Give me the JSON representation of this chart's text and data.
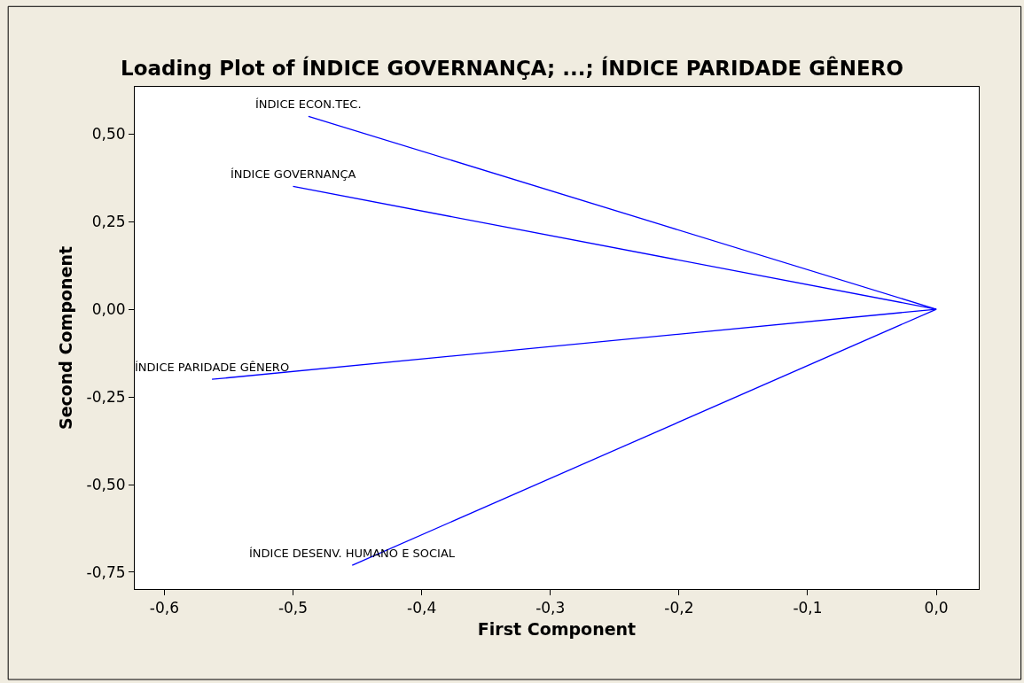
{
  "chart_data": {
    "type": "line",
    "title": "Loading Plot of ÍNDICE GOVERNANÇA; ...; ÍNDICE PARIDADE GÊNERO",
    "xlabel": "First Component",
    "ylabel": "Second Component",
    "series": [
      {
        "name": "ÍNDICE ECON.TEC.",
        "color": "#0000ff",
        "x": [
          0.0,
          -0.488
        ],
        "values": [
          0.0,
          0.55
        ]
      },
      {
        "name": "ÍNDICE GOVERNANÇA",
        "color": "#0000ff",
        "x": [
          0.0,
          -0.5
        ],
        "values": [
          0.0,
          0.35
        ]
      },
      {
        "name": "ÍNDICE PARIDADE GÊNERO",
        "color": "#0000ff",
        "x": [
          0.0,
          -0.563
        ],
        "values": [
          0.0,
          -0.2
        ]
      },
      {
        "name": "ÍNDICE DESENV. HUMANO E SOCIAL",
        "color": "#0000ff",
        "x": [
          0.0,
          -0.454
        ],
        "values": [
          0.0,
          -0.73
        ]
      }
    ],
    "xlim": [
      -0.623,
      0.033
    ],
    "ylim": [
      -0.798,
      0.634
    ],
    "xticks": [
      {
        "value": -0.6,
        "label": "-0,6"
      },
      {
        "value": -0.5,
        "label": "-0,5"
      },
      {
        "value": -0.4,
        "label": "-0,4"
      },
      {
        "value": -0.3,
        "label": "-0,3"
      },
      {
        "value": -0.2,
        "label": "-0,2"
      },
      {
        "value": -0.1,
        "label": "-0,1"
      },
      {
        "value": 0.0,
        "label": "0,0"
      }
    ],
    "yticks": [
      {
        "value": -0.75,
        "label": "-0,75"
      },
      {
        "value": -0.5,
        "label": "-0,50"
      },
      {
        "value": -0.25,
        "label": "-0,25"
      },
      {
        "value": 0.0,
        "label": "0,00"
      },
      {
        "value": 0.25,
        "label": "0,25"
      },
      {
        "value": 0.5,
        "label": "0,50"
      }
    ],
    "legend": false,
    "marker": "none",
    "line_style": "solid"
  }
}
